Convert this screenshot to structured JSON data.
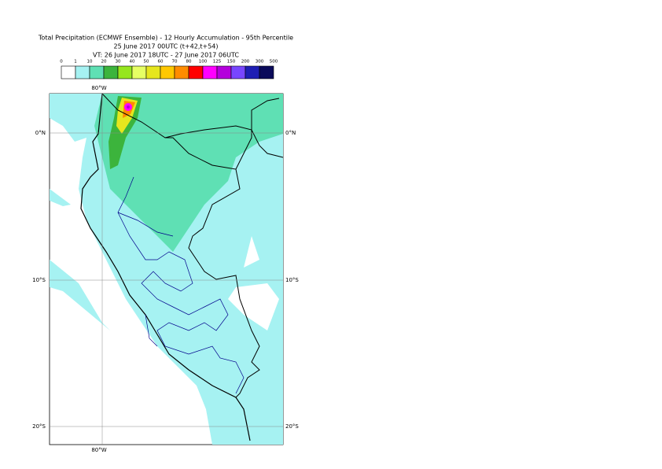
{
  "header": {
    "title": "Total Precipitation (ECMWF Ensemble) - 12 Hourly Accumulation - 95th Percentile",
    "base_time": "25 June 2017 00UTC (t+42,t+54)",
    "valid_time": "VT: 26 June 2017 18UTC - 27 June 2017 06UTC"
  },
  "colorbar": {
    "labels": [
      "0",
      "1",
      "10",
      "20",
      "30",
      "40",
      "50",
      "60",
      "70",
      "80",
      "100",
      "125",
      "150",
      "200",
      "300",
      "500"
    ],
    "colors": [
      "#ffffff",
      "#a6f2f2",
      "#5fe0b4",
      "#3cb43c",
      "#96e61e",
      "#e6ff64",
      "#e6e61e",
      "#ffc800",
      "#ff8c00",
      "#ff0000",
      "#ff00ff",
      "#b400dc",
      "#7846ff",
      "#1e1eb4",
      "#0a0a5a"
    ]
  },
  "map": {
    "lon_label": "80°W",
    "lat_labels": [
      "0°N",
      "10°S",
      "20°S"
    ]
  }
}
